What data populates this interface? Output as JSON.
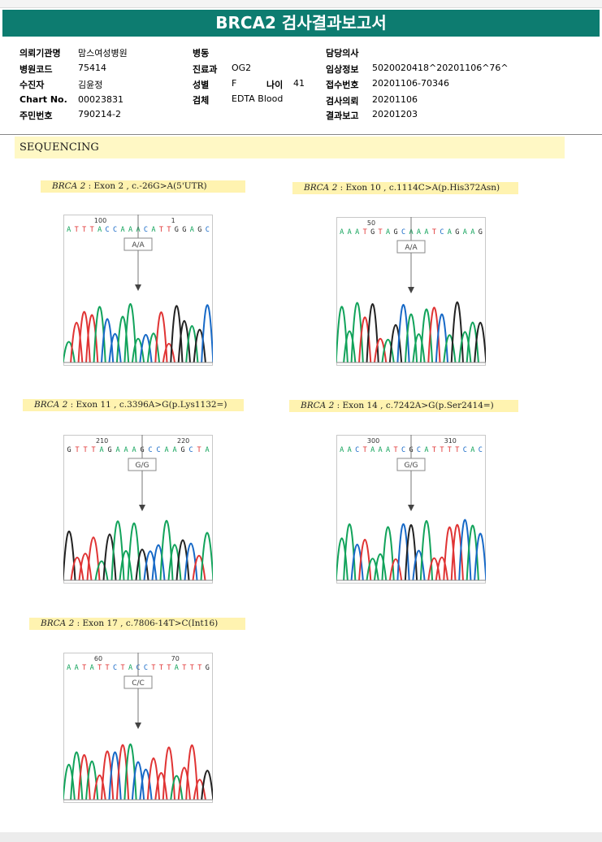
{
  "title": "BRCA2 검사결과보고서",
  "info": {
    "col1": [
      {
        "label": "의뢰기관명",
        "value": "맘스여성병원"
      },
      {
        "label": "병원코드",
        "value": "75414"
      },
      {
        "label": "수진자",
        "value": "김윤정"
      },
      {
        "label": "Chart No.",
        "value": "00023831"
      },
      {
        "label": "주민번호",
        "value": "790214-2"
      }
    ],
    "col2": [
      {
        "label": "병동",
        "value": ""
      },
      {
        "label": "진료과",
        "value": "OG2"
      },
      {
        "label": "성별",
        "value": "F"
      },
      {
        "label": "검체",
        "value": "EDTA Blood"
      }
    ],
    "age_label": "나이",
    "age_value": "41",
    "col3": [
      {
        "label": "담당의사",
        "value": ""
      },
      {
        "label": "임상정보",
        "value": "5020020418^20201106^76^"
      },
      {
        "label": "접수번호",
        "value": "20201106-70346"
      },
      {
        "label": "검사의뢰",
        "value": "20201106"
      },
      {
        "label": "결과보고",
        "value": "20201203"
      }
    ]
  },
  "section_title": "SEQUENCING",
  "colors": {
    "header": "#0d7c70",
    "A": "#12a35b",
    "C": "#1769c7",
    "G": "#222222",
    "T": "#e03434"
  },
  "variants": [
    {
      "gene": "BRCA 2",
      "detail": " : Exon 2 , c.-26G>A(5'UTR)",
      "seq": "ATTTACCAAACATTGGAGC",
      "pos_labels": [
        "100",
        "1"
      ],
      "genotype": "A/A"
    },
    {
      "gene": "BRCA 2",
      "detail": " : Exon 10 , c.1114C>A(p.His372Asn)",
      "seq": "AAATGTAGCAAATCAGAAG",
      "pos_labels": [
        "50"
      ],
      "genotype": "A/A"
    },
    {
      "gene": "BRCA 2",
      "detail": " : Exon 11 , c.3396A>G(p.Lys1132=)",
      "seq": "GTTTAGAAAGCCAAGCTA",
      "pos_labels": [
        "210",
        "220"
      ],
      "genotype": "G/G"
    },
    {
      "gene": "BRCA 2",
      "detail": " : Exon 14 , c.7242A>G(p.Ser2414=)",
      "seq": "AACTAAATCGCATTTTCAC",
      "pos_labels": [
        "300",
        "310"
      ],
      "genotype": "G/G"
    },
    {
      "gene": "BRCA 2",
      "detail": " : Exon 17 , c.7806-14T>C(Int16)",
      "seq": "AATATTCTACCTTTATTTG",
      "pos_labels": [
        "60",
        "70"
      ],
      "genotype": "C/C"
    }
  ]
}
